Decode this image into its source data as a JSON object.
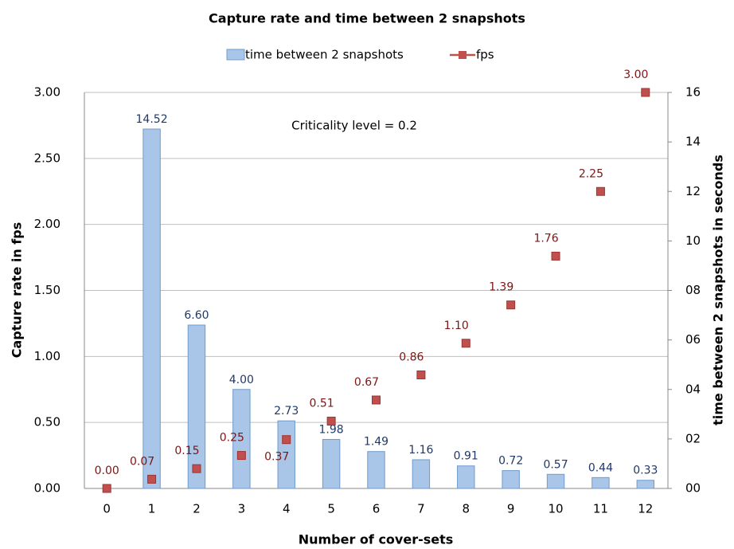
{
  "chart_data": {
    "type": "bar_line",
    "title": "Capture rate and time between 2 snapshots",
    "annotation": "Criticality level = 0.2",
    "x_label": "Number of cover-sets",
    "y_label": "Capture rate in fps",
    "y2_label": "time between 2 snapshots in seconds",
    "categories": [
      "0",
      "1",
      "2",
      "3",
      "4",
      "5",
      "6",
      "7",
      "8",
      "9",
      "10",
      "11",
      "12"
    ],
    "series": [
      {
        "name": "time between 2 snapshots",
        "type": "bar",
        "axis": "y2",
        "color": "#a9c6e8",
        "edge_color": "#6f9bcc",
        "values": [
          null,
          14.52,
          6.6,
          4.0,
          2.73,
          1.98,
          1.49,
          1.16,
          0.91,
          0.72,
          0.57,
          0.44,
          0.33
        ],
        "value_labels": [
          null,
          "14.52",
          "6.60",
          "4.00",
          "2.73",
          "1.98",
          "1.49",
          "1.16",
          "0.91",
          "0.72",
          "0.57",
          "0.44",
          "0.33"
        ]
      },
      {
        "name": "fps",
        "type": "line",
        "axis": "y",
        "color": "#c0504d",
        "values": [
          0.0,
          0.07,
          0.15,
          0.25,
          0.37,
          0.51,
          0.67,
          0.86,
          1.1,
          1.39,
          1.76,
          2.25,
          3.0
        ],
        "value_labels": [
          "0.00",
          "0.07",
          "0.15",
          "0.25",
          "0.37",
          "0.51",
          "0.67",
          "0.86",
          "1.10",
          "1.39",
          "1.76",
          "2.25",
          "3.00"
        ]
      }
    ],
    "ylim": [
      0,
      3
    ],
    "yticks": [
      {
        "value": 0,
        "label": "0.00"
      },
      {
        "value": 0.5,
        "label": "0.50"
      },
      {
        "value": 1,
        "label": "1.00"
      },
      {
        "value": 1.5,
        "label": "1.50"
      },
      {
        "value": 2,
        "label": "2.00"
      },
      {
        "value": 2.5,
        "label": "2.50"
      },
      {
        "value": 3,
        "label": "3.00"
      }
    ],
    "y2lim": [
      0,
      16
    ],
    "y2ticks": [
      {
        "value": 0,
        "label": "00"
      },
      {
        "value": 2,
        "label": "02"
      },
      {
        "value": 4,
        "label": "04"
      },
      {
        "value": 6,
        "label": "06"
      },
      {
        "value": 8,
        "label": "08"
      },
      {
        "value": 10,
        "label": "10"
      },
      {
        "value": 12,
        "label": "12"
      },
      {
        "value": 14,
        "label": "14"
      },
      {
        "value": 16,
        "label": "16"
      }
    ],
    "grid": true,
    "legend": "top"
  }
}
